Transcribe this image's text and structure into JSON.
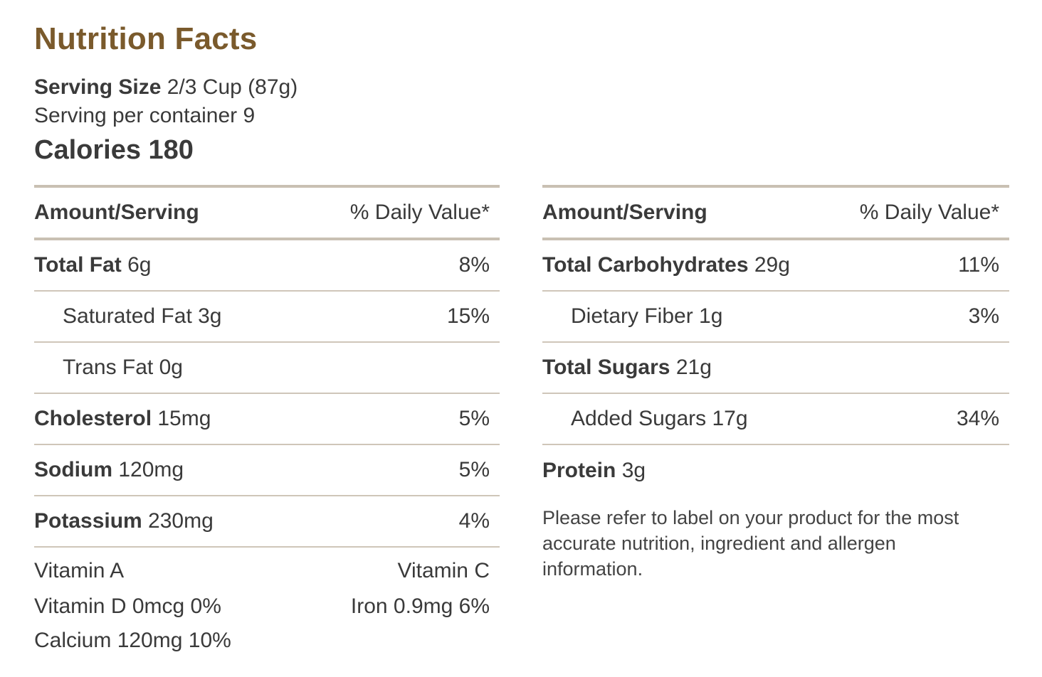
{
  "header": {
    "title": "Nutrition Facts",
    "serving_size_label": "Serving Size",
    "serving_size_value": " 2/3 Cup (87g)",
    "servings_per_container": "Serving per container 9",
    "calories": "Calories 180"
  },
  "left": {
    "header_amount": "Amount/Serving",
    "header_dv": "% Daily Value*",
    "rows": [
      {
        "name": "Total Fat",
        "amount": " 6g",
        "dv": "8%"
      },
      {
        "name": "Saturated Fat 3g",
        "dv": "15%"
      },
      {
        "name": "Trans Fat 0g",
        "dv": ""
      },
      {
        "name": "Cholesterol",
        "amount": " 15mg",
        "dv": "5%"
      },
      {
        "name": "Sodium",
        "amount": " 120mg",
        "dv": "5%"
      },
      {
        "name": "Potassium",
        "amount": " 230mg",
        "dv": "4%"
      }
    ],
    "vitamins": {
      "vitamin_a": "Vitamin A",
      "vitamin_c": "Vitamin C",
      "vitamin_d": "Vitamin D 0mcg 0%",
      "iron": "Iron 0.9mg 6%",
      "calcium": "Calcium 120mg 10%"
    }
  },
  "right": {
    "header_amount": "Amount/Serving",
    "header_dv": "% Daily Value*",
    "rows": [
      {
        "name": "Total Carbohydrates",
        "amount": " 29g",
        "dv": "11%"
      },
      {
        "name": "Dietary Fiber 1g",
        "dv": "3%"
      },
      {
        "name": "Total Sugars",
        "amount": " 21g",
        "dv": ""
      },
      {
        "name": "Added Sugars 17g",
        "dv": "34%"
      },
      {
        "name": "Protein",
        "amount": " 3g",
        "dv": ""
      }
    ],
    "note": "Please refer to label on your product for the most accurate nutrition, ingredient and allergen information."
  },
  "colors": {
    "title": "#7a5a2c",
    "text": "#3a3a3a",
    "rule": "#c9c0b3"
  }
}
